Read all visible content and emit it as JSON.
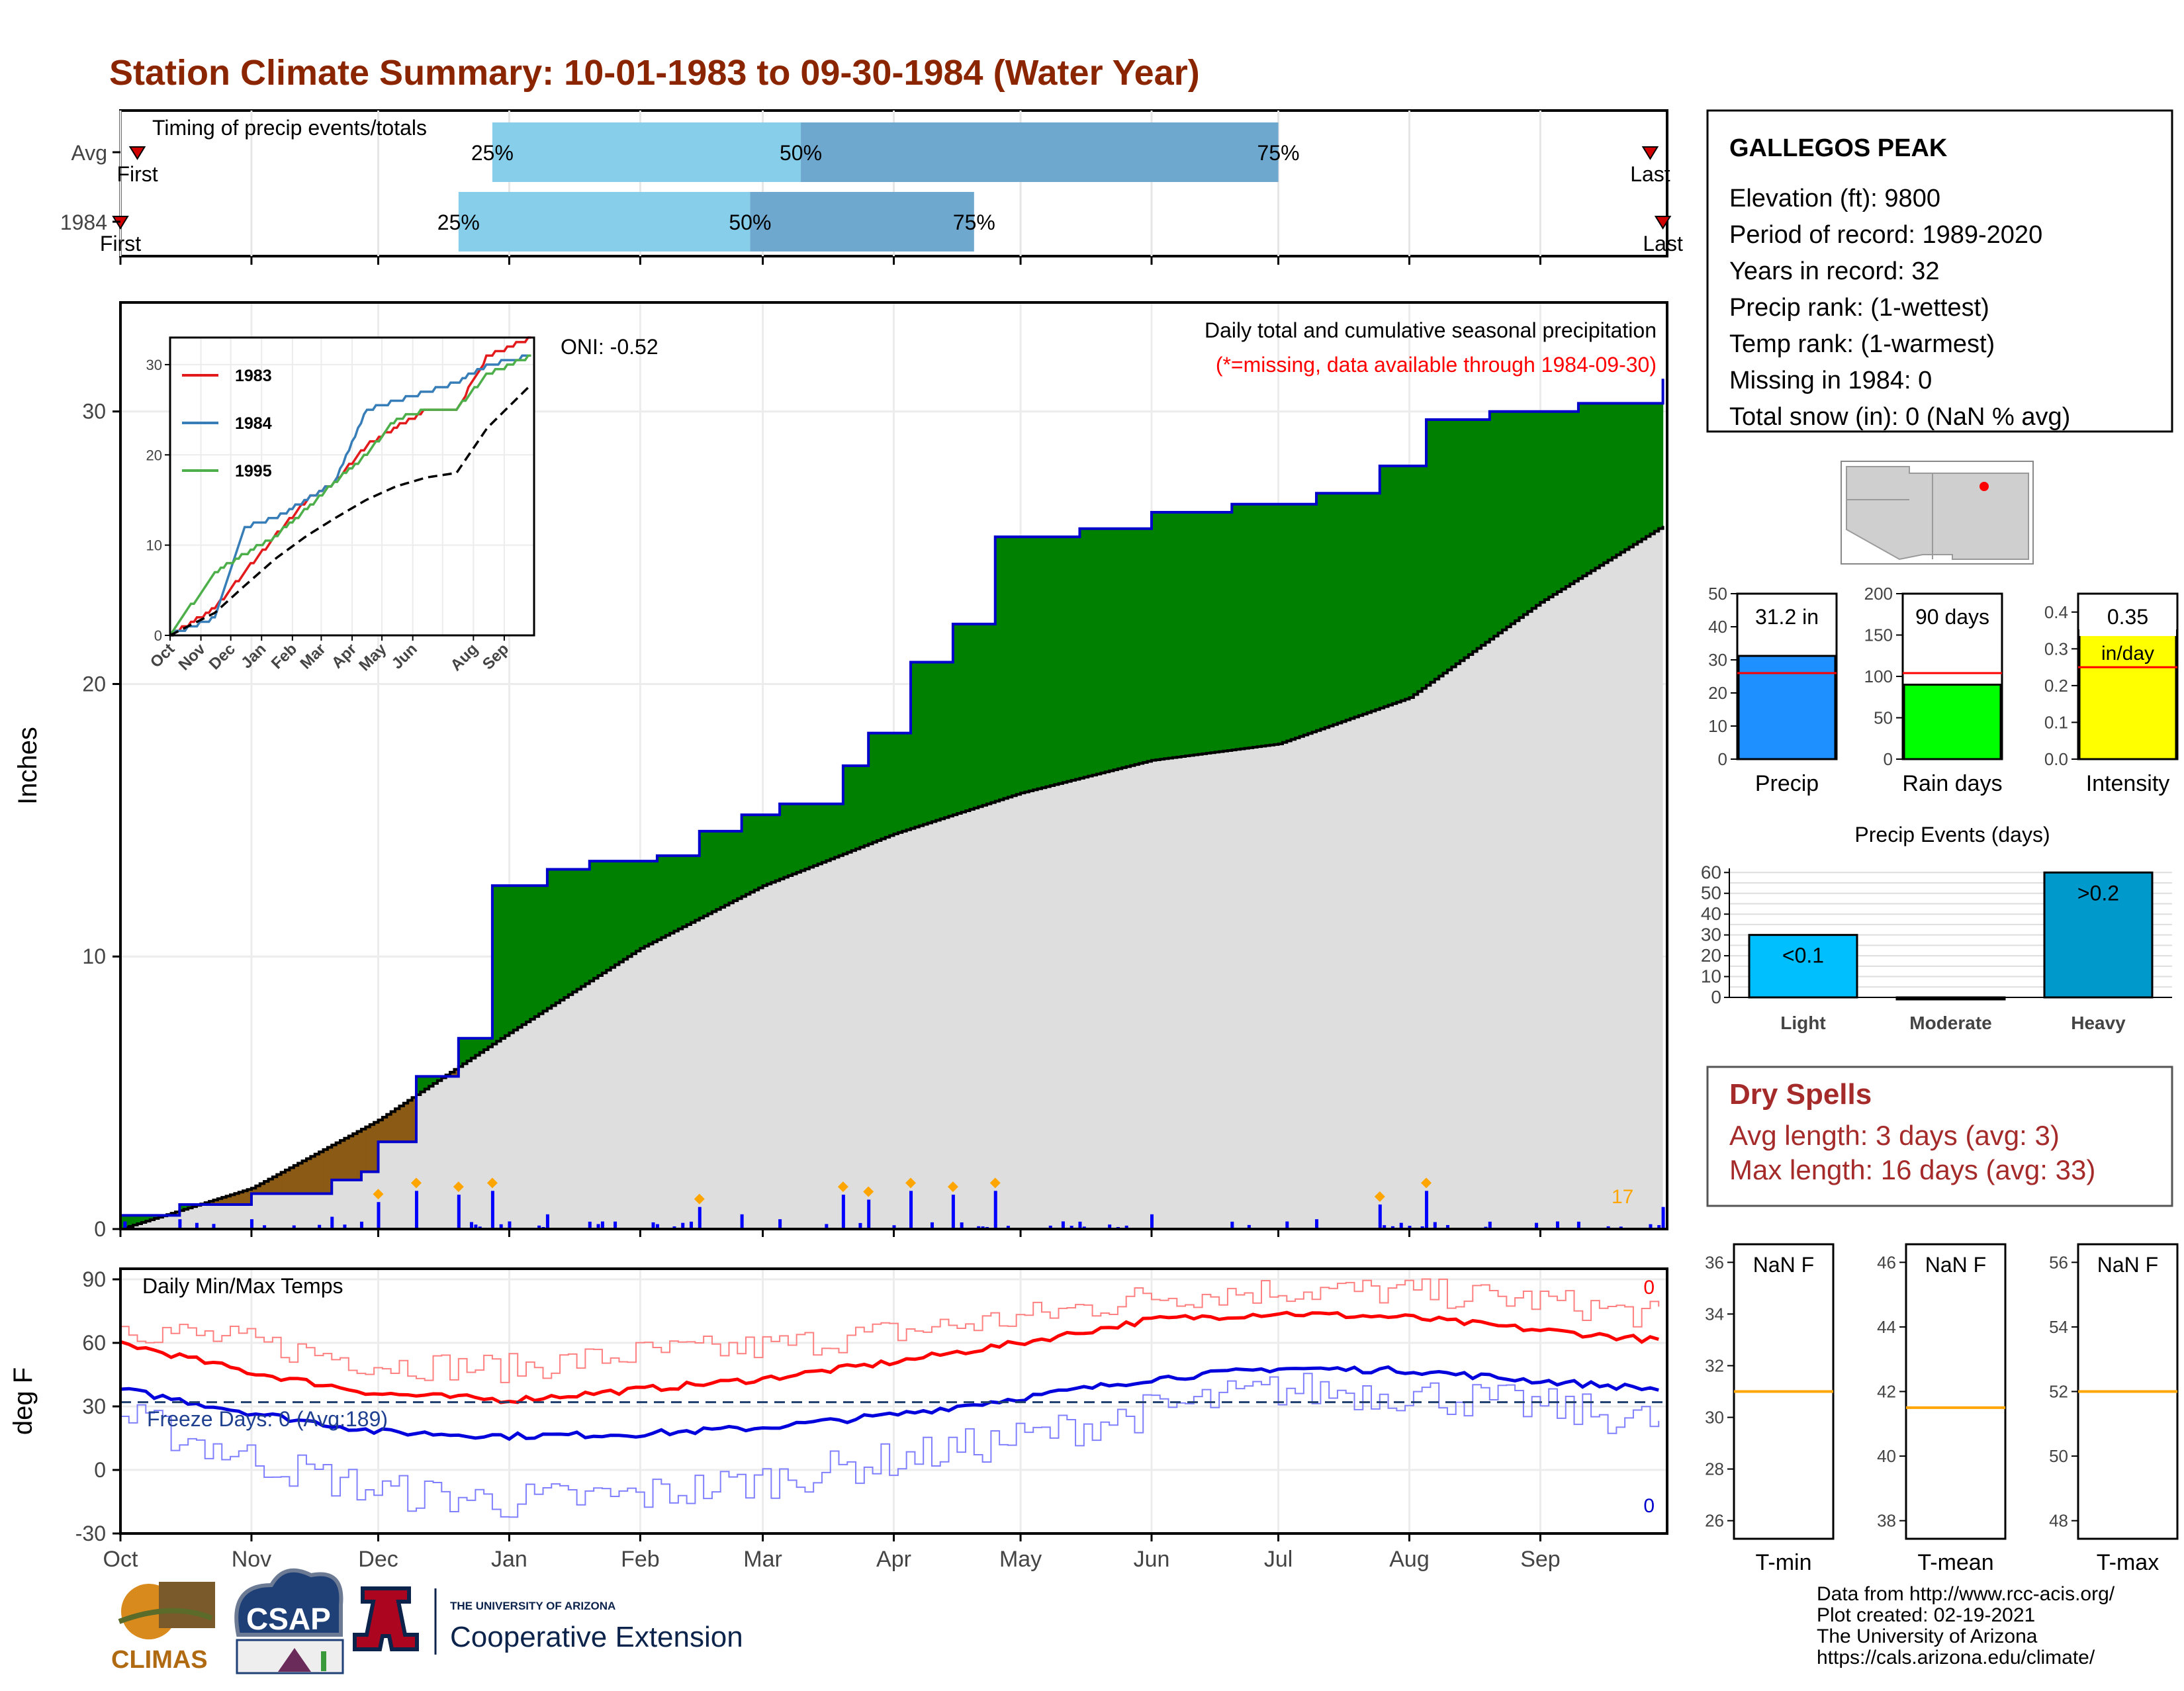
{
  "title": "Station Climate Summary: 10-01-1983 to 09-30-1984 (Water Year)",
  "timing": {
    "label": "Timing of precip events/totals",
    "rows": [
      {
        "name": "Avg",
        "q25": "25%",
        "q50": "50%",
        "q75": "75%",
        "first": "First",
        "last": "Last",
        "q25_date": "1983-12-28",
        "q50_date": "1984-03-10",
        "q75_date": "1984-07-01",
        "first_date": "1983-10-05",
        "last_date": "1984-09-27"
      },
      {
        "name": "1984",
        "q25": "25%",
        "q50": "50%",
        "q75": "75%",
        "first": "First",
        "last": "Last",
        "q25_date": "1983-12-20",
        "q50_date": "1984-02-27",
        "q75_date": "1984-04-20",
        "first_date": "1983-10-01",
        "last_date": "1984-09-30"
      }
    ],
    "colors": {
      "light": "#87ceeb",
      "dark": "#6fa8cf"
    }
  },
  "main": {
    "ylabel": "Inches",
    "oni": "ONI: -0.52",
    "subtitle": "Daily total and cumulative seasonal precipitation",
    "missing_note": "(*=missing, data available through 1984-09-30)",
    "count_label": "17",
    "colors": {
      "above": "#008000",
      "below": "#8b5a14",
      "normal": "#dedede",
      "line": "#0000cc",
      "bars": "#0000ff",
      "marker": "#ffa500"
    }
  },
  "inset": {
    "legend": [
      "1983",
      "1984",
      "1995"
    ],
    "colors": [
      "#e31a1c",
      "#377eb8",
      "#4daf4a"
    ]
  },
  "temps": {
    "ylabel": "deg F",
    "label": "Daily Min/Max Temps",
    "freeze": "Freeze Days: 0 (Avg:189)",
    "max_count": "0",
    "min_count": "0",
    "months": [
      "Oct",
      "Nov",
      "Dec",
      "Jan",
      "Feb",
      "Mar",
      "Apr",
      "May",
      "Jun",
      "Jul",
      "Aug",
      "Sep"
    ]
  },
  "station": {
    "name": "GALLEGOS PEAK",
    "lines": [
      "Elevation (ft): 9800",
      "Period of record: 1989-2020",
      "Years in record: 32",
      "Precip rank:  (1-wettest)",
      "Temp rank:  (1-warmest)",
      "Missing in 1984: 0",
      "Total snow (in): 0 (NaN % avg)"
    ]
  },
  "summary": {
    "precip": {
      "label": "Precip",
      "value_text": "31.2 in",
      "value": 31.2,
      "avg": 26
    },
    "raindays": {
      "label": "Rain days",
      "value_text": "90 days",
      "value": 90,
      "avg": 104
    },
    "intensity": {
      "label": "Intensity",
      "value_text": "0.35",
      "unit": "in/day",
      "value": 0.35,
      "avg": 0.25
    }
  },
  "events": {
    "title": "Precip Events (days)",
    "categories": [
      "Light",
      "Moderate",
      "Heavy"
    ],
    "values": [
      30,
      0,
      60
    ],
    "labels": [
      "<0.1",
      "",
      ">0.2"
    ]
  },
  "dry": {
    "title": "Dry Spells",
    "avg": "Avg length: 3 days (avg: 3)",
    "max": "Max length: 16 days (avg: 33)"
  },
  "tsum": [
    {
      "label": "T-min",
      "value": "NaN F",
      "ticks": [
        "36",
        "34",
        "32",
        "30",
        "28",
        "26"
      ],
      "avg": 31
    },
    {
      "label": "T-mean",
      "value": "NaN F",
      "ticks": [
        "46",
        "44",
        "42",
        "40",
        "38"
      ],
      "avg": 41.5
    },
    {
      "label": "T-max",
      "value": "NaN F",
      "ticks": [
        "56",
        "54",
        "52",
        "50",
        "48"
      ],
      "avg": 52
    }
  ],
  "credits": [
    "Data from http://www.rcc-acis.org/",
    "Plot created: 02-19-2021",
    "The University of Arizona",
    "https://cals.arizona.edu/climate/"
  ],
  "logos": {
    "climas": "CLIMAS",
    "csap": "CSAP",
    "ua_small": "THE UNIVERSITY OF ARIZONA",
    "ua_big": "Cooperative Extension"
  },
  "chart_data": [
    {
      "type": "area",
      "title": "Daily total and cumulative seasonal precipitation",
      "ylabel": "Inches",
      "ylim": [
        0,
        34
      ],
      "x_categories": [
        "Oct",
        "Nov",
        "Dec",
        "Jan",
        "Feb",
        "Mar",
        "Apr",
        "May",
        "Jun",
        "Jul",
        "Aug",
        "Sep"
      ],
      "series": [
        {
          "name": "1984",
          "x": [
            "1983-10-01",
            "1983-10-15",
            "1983-11-01",
            "1983-11-20",
            "1983-11-27",
            "1983-12-01",
            "1983-12-10",
            "1983-12-20",
            "1983-12-28",
            "1984-01-10",
            "1984-01-20",
            "1984-02-05",
            "1984-02-15",
            "1984-02-25",
            "1984-03-05",
            "1984-03-20",
            "1984-03-26",
            "1984-04-05",
            "1984-04-15",
            "1984-04-25",
            "1984-05-15",
            "1984-06-01",
            "1984-06-20",
            "1984-07-10",
            "1984-07-25",
            "1984-08-05",
            "1984-08-20",
            "1984-09-10",
            "1984-09-30"
          ],
          "values": [
            0.5,
            0.9,
            1.3,
            1.8,
            2.1,
            3.2,
            5.6,
            7.0,
            12.6,
            13.2,
            13.5,
            13.7,
            14.6,
            15.2,
            15.6,
            17.0,
            18.2,
            20.8,
            22.2,
            25.4,
            25.7,
            26.3,
            26.6,
            27.0,
            28.0,
            29.7,
            30.0,
            30.3,
            31.2
          ]
        },
        {
          "name": "Avg",
          "x": [
            "1983-10-01",
            "1983-11-01",
            "1983-12-01",
            "1984-01-01",
            "1984-02-01",
            "1984-03-01",
            "1984-04-01",
            "1984-05-01",
            "1984-06-01",
            "1984-07-01",
            "1984-08-01",
            "1984-09-01",
            "1984-09-30"
          ],
          "values": [
            0.0,
            1.5,
            4.0,
            7.2,
            10.3,
            12.6,
            14.5,
            16.0,
            17.2,
            17.8,
            19.5,
            23.0,
            25.8
          ]
        }
      ]
    },
    {
      "type": "line",
      "title": "",
      "ylim": [
        0,
        33
      ],
      "series": [
        {
          "name": "1983",
          "x": [
            "1983-10-01",
            "1983-11-15",
            "1983-12-15",
            "1984-01-15",
            "1984-02-15",
            "1984-03-15",
            "1984-04-15",
            "1984-05-15",
            "1984-06-15",
            "1984-07-15",
            "1984-08-15",
            "1984-09-30"
          ],
          "values": [
            0,
            3,
            7,
            11,
            15,
            17,
            21,
            23,
            25,
            25,
            31,
            33
          ]
        },
        {
          "name": "1984",
          "x": [
            "1983-10-01",
            "1983-11-15",
            "1983-12-15",
            "1984-01-15",
            "1984-02-15",
            "1984-03-15",
            "1984-04-15",
            "1984-05-15",
            "1984-06-15",
            "1984-07-15",
            "1984-08-15",
            "1984-09-30"
          ],
          "values": [
            0,
            2,
            12,
            13,
            15,
            17,
            25,
            26,
            27,
            28,
            30,
            31
          ]
        },
        {
          "name": "1995",
          "x": [
            "1983-10-01",
            "1983-11-15",
            "1983-12-15",
            "1984-01-15",
            "1984-02-15",
            "1984-03-15",
            "1984-04-15",
            "1984-05-15",
            "1984-06-15",
            "1984-07-15",
            "1984-08-15",
            "1984-09-30"
          ],
          "values": [
            0,
            7,
            9,
            11,
            14,
            17,
            20,
            24,
            25,
            25,
            29,
            31
          ]
        },
        {
          "name": "Avg",
          "x": [
            "1983-10-01",
            "1983-11-15",
            "1983-12-15",
            "1984-01-15",
            "1984-02-15",
            "1984-03-15",
            "1984-04-15",
            "1984-05-15",
            "1984-06-15",
            "1984-07-15",
            "1984-08-15",
            "1984-09-30"
          ],
          "values": [
            0,
            2.5,
            5.5,
            8.5,
            11,
            13,
            15,
            16.5,
            17.5,
            18,
            23,
            28
          ]
        }
      ]
    },
    {
      "type": "line",
      "title": "Daily Min/Max Temps",
      "ylabel": "deg F",
      "ylim": [
        -30,
        95
      ],
      "x": [
        "1983-10-01",
        "1983-11-01",
        "1983-12-01",
        "1984-01-01",
        "1984-02-01",
        "1984-03-01",
        "1984-04-01",
        "1984-05-01",
        "1984-06-01",
        "1984-07-01",
        "1984-08-01",
        "1984-09-01",
        "1984-09-30"
      ],
      "series": [
        {
          "name": "Record max",
          "values": [
            68,
            60,
            50,
            48,
            55,
            58,
            65,
            72,
            82,
            85,
            84,
            80,
            72
          ]
        },
        {
          "name": "Avg max",
          "values": [
            60,
            46,
            36,
            33,
            38,
            43,
            51,
            60,
            71,
            74,
            72,
            66,
            61
          ]
        },
        {
          "name": "Avg min",
          "values": [
            38,
            27,
            18,
            16,
            17,
            20,
            26,
            34,
            43,
            48,
            47,
            42,
            38
          ]
        },
        {
          "name": "Record min",
          "values": [
            25,
            5,
            -10,
            -15,
            -12,
            -5,
            5,
            15,
            28,
            38,
            36,
            30,
            22
          ]
        }
      ]
    }
  ]
}
